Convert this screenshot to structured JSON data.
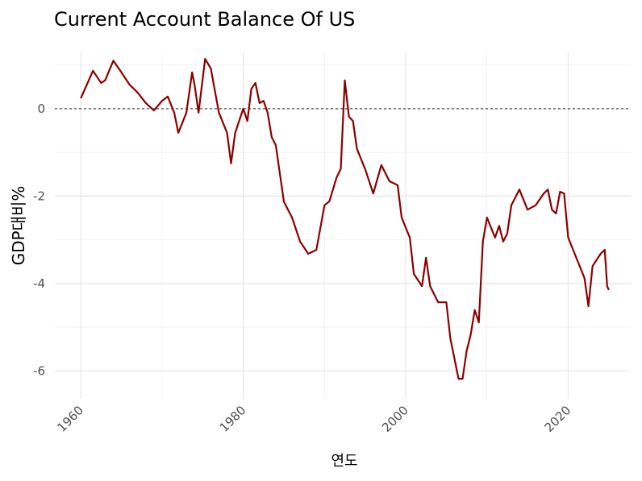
{
  "chart_data": {
    "type": "line",
    "title": "Current Account Balance Of US",
    "x_label": "연도",
    "y_label": "GDP대비%",
    "x": [
      1960,
      1961.5,
      1962.5,
      1963,
      1964,
      1965,
      1966,
      1967,
      1968,
      1969,
      1970,
      1970.7,
      1971.5,
      1972,
      1973,
      1973.7,
      1974,
      1974.5,
      1975.3,
      1976,
      1977,
      1978,
      1978.5,
      1979,
      1980,
      1980.5,
      1981,
      1981.5,
      1982,
      1982.5,
      1983,
      1983.5,
      1984,
      1985,
      1986,
      1987,
      1988,
      1989,
      1990,
      1990.6,
      1991.5,
      1992,
      1992.5,
      1993,
      1993.5,
      1994,
      1995,
      1996,
      1997,
      1998,
      1999,
      1999.5,
      2000.5,
      2001,
      2002,
      2002.5,
      2003,
      2004,
      2005,
      2005.5,
      2006,
      2006.5,
      2007,
      2007.5,
      2008,
      2008.5,
      2009,
      2009.5,
      2010,
      2011,
      2011.5,
      2012,
      2012.5,
      2013,
      2014,
      2015,
      2016,
      2017,
      2017.5,
      2018,
      2018.5,
      2019,
      2019.5,
      2020,
      2021,
      2022,
      2022.5,
      2023,
      2024,
      2024.5,
      2024.8,
      2025
    ],
    "series": [
      {
        "name": "Current Account Balance",
        "color": "#8b0000",
        "values": [
          0.24,
          0.87,
          0.59,
          0.65,
          1.1,
          0.83,
          0.55,
          0.37,
          0.13,
          -0.04,
          0.18,
          0.28,
          -0.09,
          -0.55,
          -0.09,
          0.83,
          0.55,
          -0.09,
          1.14,
          0.92,
          -0.09,
          -0.55,
          -1.25,
          -0.55,
          0,
          -0.28,
          0.46,
          0.59,
          0.13,
          0.18,
          -0.09,
          -0.65,
          -0.83,
          -2.13,
          -2.49,
          -3.04,
          -3.32,
          -3.23,
          -2.21,
          -2.12,
          -1.57,
          -1.38,
          0.65,
          -0.18,
          -0.28,
          -0.92,
          -1.38,
          -1.94,
          -1.29,
          -1.66,
          -1.75,
          -2.49,
          -2.95,
          -3.78,
          -4.06,
          -3.41,
          -4.06,
          -4.43,
          -4.43,
          -5.26,
          -5.72,
          -6.18,
          -6.18,
          -5.54,
          -5.17,
          -4.61,
          -4.89,
          -3.04,
          -2.49,
          -2.95,
          -2.68,
          -3.04,
          -2.86,
          -2.21,
          -1.85,
          -2.31,
          -2.21,
          -1.94,
          -1.85,
          -2.31,
          -2.4,
          -1.9,
          -1.94,
          -2.95,
          -3.41,
          -3.87,
          -4.52,
          -3.6,
          -3.32,
          -3.23,
          -4.06,
          -4.15
        ]
      }
    ],
    "xlim": [
      1956.8,
      2027.7
    ],
    "ylim": [
      -6.64,
      1.29
    ],
    "xticks": [
      1960,
      1980,
      2000,
      2020
    ],
    "yticks": [
      -6,
      -4,
      -2,
      0
    ],
    "grid": true,
    "hline": 0
  }
}
